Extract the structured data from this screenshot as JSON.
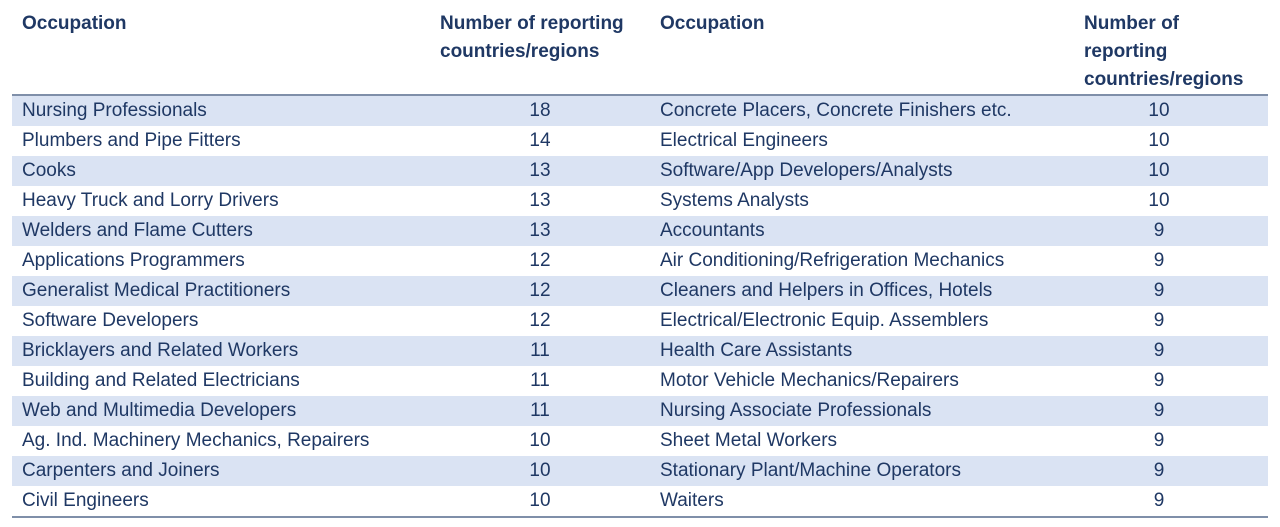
{
  "headers": {
    "occupation_left": "Occupation",
    "count_left": "Number of reporting countries/regions",
    "occupation_right": "Occupation",
    "count_right": "Number of reporting countries/regions"
  },
  "rows": [
    {
      "left_occupation": "Nursing Professionals",
      "left_count": "18",
      "right_occupation": "Concrete Placers, Concrete Finishers etc.",
      "right_count": "10",
      "shaded": true
    },
    {
      "left_occupation": "Plumbers and Pipe Fitters",
      "left_count": "14",
      "right_occupation": "Electrical Engineers",
      "right_count": "10",
      "shaded": false
    },
    {
      "left_occupation": "Cooks",
      "left_count": "13",
      "right_occupation": "Software/App Developers/Analysts",
      "right_count": "10",
      "shaded": true
    },
    {
      "left_occupation": "Heavy Truck and Lorry Drivers",
      "left_count": "13",
      "right_occupation": "Systems Analysts",
      "right_count": "10",
      "shaded": false
    },
    {
      "left_occupation": "Welders and Flame Cutters",
      "left_count": "13",
      "right_occupation": "Accountants",
      "right_count": "9",
      "shaded": true
    },
    {
      "left_occupation": "Applications Programmers",
      "left_count": "12",
      "right_occupation": "Air Conditioning/Refrigeration Mechanics",
      "right_count": "9",
      "shaded": false
    },
    {
      "left_occupation": "Generalist Medical Practitioners",
      "left_count": "12",
      "right_occupation": "Cleaners and Helpers in Offices, Hotels",
      "right_count": "9",
      "shaded": true
    },
    {
      "left_occupation": "Software Developers",
      "left_count": "12",
      "right_occupation": "Electrical/Electronic Equip. Assemblers",
      "right_count": "9",
      "shaded": false
    },
    {
      "left_occupation": "Bricklayers and Related Workers",
      "left_count": "11",
      "right_occupation": "Health Care Assistants",
      "right_count": "9",
      "shaded": true
    },
    {
      "left_occupation": "Building and Related Electricians",
      "left_count": "11",
      "right_occupation": "Motor Vehicle Mechanics/Repairers",
      "right_count": "9",
      "shaded": false
    },
    {
      "left_occupation": "Web and Multimedia Developers",
      "left_count": "11",
      "right_occupation": "Nursing Associate Professionals",
      "right_count": "9",
      "shaded": true
    },
    {
      "left_occupation": "Ag. Ind. Machinery Mechanics, Repairers",
      "left_count": "10",
      "right_occupation": "Sheet Metal Workers",
      "right_count": "9",
      "shaded": false
    },
    {
      "left_occupation": "Carpenters and Joiners",
      "left_count": "10",
      "right_occupation": "Stationary Plant/Machine Operators",
      "right_count": "9",
      "shaded": true
    },
    {
      "left_occupation": "Civil Engineers",
      "left_count": "10",
      "right_occupation": "Waiters",
      "right_count": "9",
      "shaded": false
    }
  ],
  "colors": {
    "text": "#1f3864",
    "row_shade": "#dae3f3",
    "rule": "#7f8fa9"
  }
}
